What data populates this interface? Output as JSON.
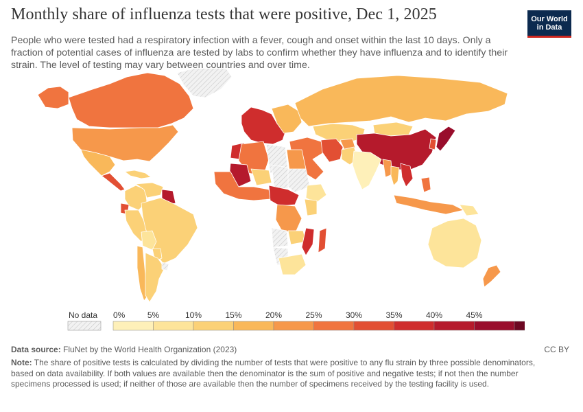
{
  "header": {
    "title": "Monthly share of influenza tests that were positive, Dec 1, 2025",
    "subtitle": "People who were tested had a respiratory infection with a fever, cough and onset within the last 10 days. Only a fraction of potential cases of influenza are tested by labs to confirm whether they have influenza and to identify their strain. The level of testing may vary between countries and over time."
  },
  "logo": {
    "line1": "Our World",
    "line2": "in Data"
  },
  "legend": {
    "no_data_label": "No data",
    "tick_labels": [
      "0%",
      "5%",
      "10%",
      "15%",
      "20%",
      "25%",
      "30%",
      "35%",
      "40%",
      "45%"
    ],
    "colors": [
      "#fef0b9",
      "#fde49a",
      "#fbd177",
      "#f9b85a",
      "#f6984b",
      "#f0743f",
      "#e24f33",
      "#cf2d2d",
      "#b51a2c",
      "#990d2c",
      "#6d0722"
    ]
  },
  "footer": {
    "source_label": "Data source:",
    "source_text": "FluNet by the World Health Organization (2023)",
    "license": "CC BY",
    "note_label": "Note:",
    "note_text": "The share of positive tests is calculated by dividing the number of tests that were positive to any flu strain by three possible denominators, based on data availability. If both values are available then the denominator is the sum of positive and negative tests; if not then the number specimens processed is used; if neither of those are available then the number of specimens received by the testing facility is used."
  },
  "chart_data": {
    "type": "choropleth",
    "metric": "Share of influenza tests positive (%)",
    "scale_bins": [
      0,
      5,
      10,
      15,
      20,
      25,
      30,
      35,
      40,
      45
    ],
    "regions": [
      {
        "name": "Canada",
        "value": 27
      },
      {
        "name": "United States",
        "value": 22
      },
      {
        "name": "Alaska",
        "value": 27
      },
      {
        "name": "Greenland",
        "value": null
      },
      {
        "name": "Mexico",
        "value": 17
      },
      {
        "name": "Central America",
        "value": 30
      },
      {
        "name": "Caribbean",
        "value": 12
      },
      {
        "name": "Colombia",
        "value": 14
      },
      {
        "name": "Venezuela",
        "value": 10
      },
      {
        "name": "Guianas",
        "value": 43
      },
      {
        "name": "Ecuador",
        "value": 30
      },
      {
        "name": "Peru",
        "value": 11
      },
      {
        "name": "Brazil",
        "value": 10
      },
      {
        "name": "Bolivia",
        "value": 9
      },
      {
        "name": "Paraguay",
        "value": 12
      },
      {
        "name": "Chile",
        "value": 16
      },
      {
        "name": "Argentina",
        "value": 12
      },
      {
        "name": "Uruguay",
        "value": null
      },
      {
        "name": "Western Europe",
        "value": 36
      },
      {
        "name": "Eastern Europe",
        "value": 15
      },
      {
        "name": "Russia",
        "value": 18
      },
      {
        "name": "Kazakhstan",
        "value": 11
      },
      {
        "name": "Mongolia",
        "value": 12
      },
      {
        "name": "China",
        "value": 40
      },
      {
        "name": "Japan",
        "value": 46
      },
      {
        "name": "Korea",
        "value": 34
      },
      {
        "name": "Middle East",
        "value": 27
      },
      {
        "name": "Iran",
        "value": 31
      },
      {
        "name": "Afghanistan",
        "value": 20
      },
      {
        "name": "Pakistan",
        "value": 10
      },
      {
        "name": "India",
        "value": 4
      },
      {
        "name": "Myanmar",
        "value": 22
      },
      {
        "name": "Thailand",
        "value": 19
      },
      {
        "name": "Vietnam",
        "value": 37
      },
      {
        "name": "Philippines",
        "value": 26
      },
      {
        "name": "Indonesia",
        "value": 20
      },
      {
        "name": "Papua New Guinea",
        "value": 9
      },
      {
        "name": "Australia",
        "value": 7
      },
      {
        "name": "New Zealand",
        "value": 21
      },
      {
        "name": "Morocco",
        "value": 37
      },
      {
        "name": "Algeria",
        "value": 26
      },
      {
        "name": "Libya",
        "value": null
      },
      {
        "name": "Egypt",
        "value": 20
      },
      {
        "name": "Mali",
        "value": 42
      },
      {
        "name": "Niger",
        "value": 11
      },
      {
        "name": "Chad",
        "value": null
      },
      {
        "name": "Sudan",
        "value": null
      },
      {
        "name": "West Africa",
        "value": 25
      },
      {
        "name": "Central Africa",
        "value": 35
      },
      {
        "name": "Ethiopia",
        "value": 9
      },
      {
        "name": "Kenya",
        "value": 13
      },
      {
        "name": "DR Congo",
        "value": 22
      },
      {
        "name": "Angola",
        "value": null
      },
      {
        "name": "Zambia",
        "value": 10
      },
      {
        "name": "Mozambique",
        "value": 36
      },
      {
        "name": "Madagascar",
        "value": 33
      },
      {
        "name": "Namibia",
        "value": null
      },
      {
        "name": "South Africa",
        "value": 9
      }
    ]
  }
}
